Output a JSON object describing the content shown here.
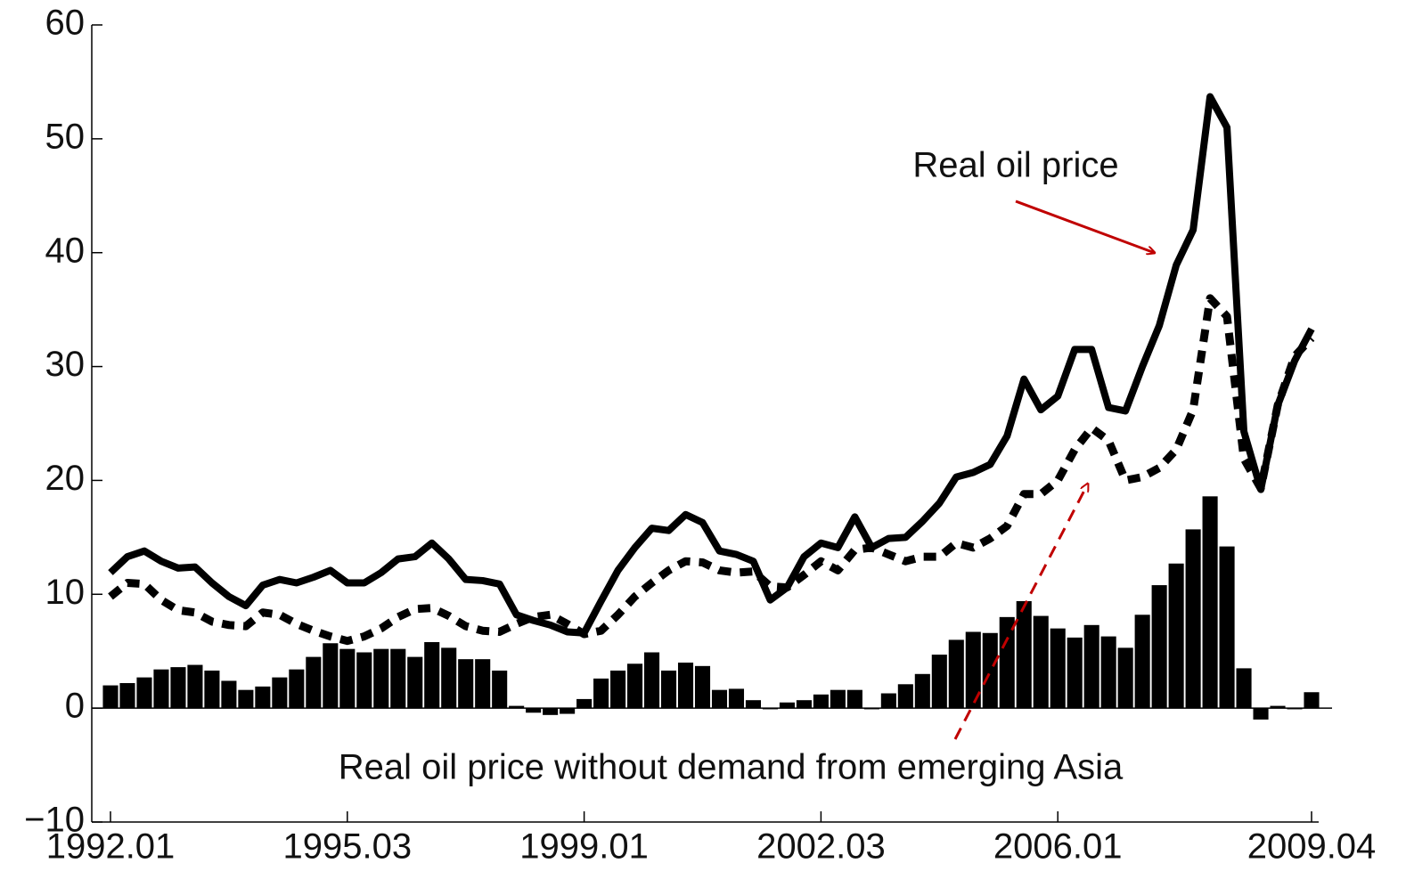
{
  "chart_data": {
    "type": "bar-line",
    "categories": [
      "1992.01",
      null,
      null,
      null,
      null,
      null,
      null,
      null,
      null,
      null,
      null,
      null,
      null,
      null,
      "1995.03",
      null,
      null,
      null,
      null,
      null,
      null,
      null,
      null,
      null,
      null,
      null,
      null,
      null,
      "1999.01",
      null,
      null,
      null,
      null,
      null,
      null,
      null,
      null,
      null,
      null,
      null,
      null,
      null,
      "2002.03",
      null,
      null,
      null,
      null,
      null,
      null,
      null,
      null,
      null,
      null,
      null,
      null,
      null,
      "2006.01",
      null,
      null,
      null,
      null,
      null,
      null,
      null,
      null,
      null,
      null,
      null,
      null,
      null,
      null,
      "2009.04"
    ],
    "series": [
      {
        "kind": "bar",
        "color": "#000000",
        "values": [
          2.0,
          2.2,
          2.7,
          3.4,
          3.6,
          3.8,
          3.3,
          2.4,
          1.6,
          1.9,
          2.7,
          3.4,
          4.5,
          5.7,
          5.2,
          4.9,
          5.2,
          5.2,
          4.5,
          5.8,
          5.3,
          4.3,
          4.3,
          3.3,
          0.2,
          -0.4,
          -0.6,
          -0.5,
          0.8,
          2.6,
          3.3,
          3.9,
          4.9,
          3.3,
          4.0,
          3.7,
          1.6,
          1.7,
          0.7,
          -0.1,
          0.5,
          0.7,
          1.2,
          1.6,
          1.6,
          -0.1,
          1.3,
          2.1,
          3.0,
          4.7,
          6.0,
          6.7,
          6.6,
          8.0,
          9.4,
          8.1,
          7.0,
          6.2,
          7.3,
          6.3,
          5.3,
          8.2,
          10.8,
          12.7,
          15.7,
          18.6,
          14.2,
          3.5,
          -1.0,
          0.2,
          -0.1,
          1.4
        ]
      },
      {
        "kind": "line",
        "color": "#000000",
        "dashed": false,
        "values": [
          11.9,
          13.3,
          13.8,
          12.9,
          12.3,
          12.4,
          11.0,
          9.8,
          9.0,
          10.8,
          11.3,
          11.0,
          11.5,
          12.1,
          11.0,
          11.0,
          11.9,
          13.1,
          13.3,
          14.5,
          13.1,
          11.3,
          11.2,
          10.9,
          8.2,
          7.7,
          7.3,
          6.7,
          6.6,
          9.4,
          12.1,
          14.1,
          15.8,
          15.6,
          17.0,
          16.3,
          13.8,
          13.5,
          12.9,
          9.5,
          10.6,
          13.3,
          14.5,
          14.1,
          16.8,
          14.1,
          14.9,
          15.0,
          16.4,
          18.0,
          20.3,
          20.7,
          21.4,
          23.9,
          28.9,
          26.2,
          27.4,
          31.5,
          31.5,
          26.4,
          26.1,
          30.0,
          33.6,
          38.9,
          42.0,
          53.7,
          51.0,
          24.3,
          19.2,
          26.6,
          30.5,
          33.3
        ]
      },
      {
        "kind": "line",
        "color": "#000000",
        "dashed": true,
        "values": [
          9.8,
          11.0,
          10.9,
          9.5,
          8.6,
          8.4,
          7.6,
          7.3,
          7.2,
          8.4,
          8.2,
          7.4,
          6.8,
          6.3,
          5.9,
          6.3,
          7.0,
          8.0,
          8.7,
          8.8,
          8.1,
          7.2,
          6.8,
          6.7,
          7.4,
          8.0,
          8.2,
          7.4,
          6.5,
          6.8,
          8.2,
          9.8,
          11.0,
          12.1,
          12.9,
          12.8,
          12.1,
          11.9,
          12.0,
          10.7,
          10.6,
          11.7,
          12.9,
          12.1,
          13.9,
          14.1,
          13.5,
          12.9,
          13.3,
          13.3,
          14.5,
          14.1,
          14.9,
          16.0,
          18.8,
          18.8,
          20.0,
          22.7,
          24.6,
          23.5,
          20.0,
          20.3,
          21.1,
          22.7,
          26.2,
          36.0,
          34.4,
          21.9,
          19.3,
          26.6,
          30.9,
          32.5
        ]
      }
    ],
    "annotations": [
      "Real oil price",
      "Real oil price without demand from emerging Asia"
    ],
    "ylim": [
      -10,
      60
    ],
    "yticks": [
      {
        "value": -10,
        "label": "−10"
      },
      0,
      10,
      20,
      30,
      40,
      50,
      60
    ]
  }
}
